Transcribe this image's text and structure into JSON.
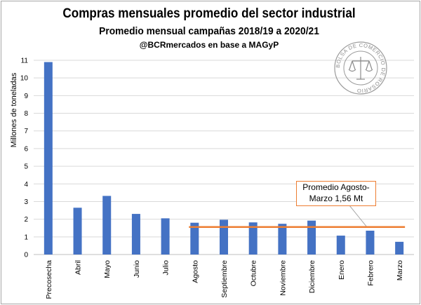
{
  "header": {
    "title": "Compras mensuales promedio del sector industrial",
    "subtitle": "Promedio mensual campañas 2018/19 a 2020/21",
    "source": "@BCRmercados en base a MAGyP"
  },
  "seal": {
    "text": "BOLSA DE COMERCIO DE ROSARIO",
    "icon": "scales-of-justice-seal-icon"
  },
  "annotation": {
    "line1": "Promedio Agosto-",
    "line2": "Marzo 1,56  Mt"
  },
  "colors": {
    "bar": "#4472c4",
    "average_line": "#ed7d31",
    "grid": "#d9d9d9"
  },
  "chart_data": {
    "type": "bar",
    "ylabel": "Millones de toneladas",
    "xlabel": "",
    "ylim": [
      0,
      11
    ],
    "yticks": [
      "0",
      "1",
      "2",
      "3",
      "4",
      "5",
      "6",
      "7",
      "8",
      "9",
      "10",
      "11"
    ],
    "grid": true,
    "legend": "none",
    "categories": [
      "Precosecha",
      "Abril",
      "Mayo",
      "Junio",
      "Julio",
      "Agosto",
      "Septiembre",
      "Octubre",
      "Noviembre",
      "Diciembre",
      "Enero",
      "Febrero",
      "Marzo"
    ],
    "values": [
      10.9,
      2.65,
      3.32,
      2.3,
      2.05,
      1.8,
      1.97,
      1.82,
      1.74,
      1.92,
      1.07,
      1.35,
      0.72
    ],
    "average_line": {
      "value": 1.56,
      "from": "Agosto",
      "to": "Marzo"
    }
  }
}
